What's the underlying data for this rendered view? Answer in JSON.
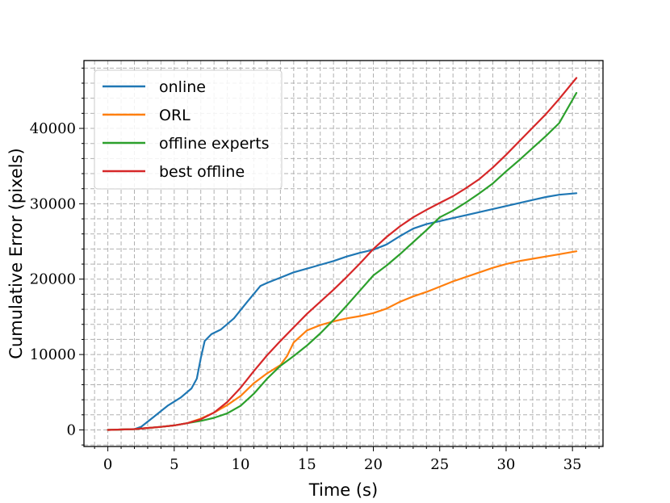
{
  "chart_data": {
    "type": "line",
    "title": "",
    "xlabel": "Time (s)",
    "ylabel": "Cumulative Error (pixels)",
    "xlim": [
      -1.8,
      37.3
    ],
    "ylim": [
      -2200,
      49000
    ],
    "xticks": [
      0,
      5,
      10,
      15,
      20,
      25,
      30,
      35
    ],
    "yticks": [
      0,
      10000,
      20000,
      30000,
      40000
    ],
    "x_minor_step": 1,
    "y_minor_step": 2000,
    "grid": true,
    "legend_position": "upper-left",
    "series": [
      {
        "name": "online",
        "color": "#1f77b4",
        "points": [
          [
            0,
            0
          ],
          [
            2,
            100
          ],
          [
            2.5,
            400
          ],
          [
            3.5,
            1800
          ],
          [
            4.5,
            3200
          ],
          [
            5.5,
            4300
          ],
          [
            6.3,
            5500
          ],
          [
            6.7,
            6800
          ],
          [
            7.0,
            9500
          ],
          [
            7.3,
            11800
          ],
          [
            7.8,
            12700
          ],
          [
            8.5,
            13300
          ],
          [
            9.5,
            14800
          ],
          [
            10.5,
            17000
          ],
          [
            11.5,
            19100
          ],
          [
            12,
            19500
          ],
          [
            13,
            20200
          ],
          [
            14,
            20900
          ],
          [
            15,
            21400
          ],
          [
            16,
            21900
          ],
          [
            17,
            22400
          ],
          [
            18,
            23000
          ],
          [
            19,
            23500
          ],
          [
            20,
            23900
          ],
          [
            21,
            24600
          ],
          [
            22,
            25700
          ],
          [
            23,
            26700
          ],
          [
            24,
            27300
          ],
          [
            25,
            27700
          ],
          [
            26,
            28100
          ],
          [
            27,
            28500
          ],
          [
            28,
            28900
          ],
          [
            29,
            29300
          ],
          [
            30,
            29700
          ],
          [
            31,
            30100
          ],
          [
            32,
            30500
          ],
          [
            33,
            30900
          ],
          [
            34,
            31200
          ],
          [
            35.3,
            31400
          ]
        ]
      },
      {
        "name": "ORL",
        "color": "#ff7f0e",
        "points": [
          [
            0,
            0
          ],
          [
            2,
            100
          ],
          [
            3,
            250
          ],
          [
            4,
            400
          ],
          [
            5,
            600
          ],
          [
            6,
            900
          ],
          [
            7,
            1500
          ],
          [
            8,
            2300
          ],
          [
            9,
            3300
          ],
          [
            10,
            4500
          ],
          [
            11,
            6200
          ],
          [
            12,
            7500
          ],
          [
            13,
            8600
          ],
          [
            13.5,
            9800
          ],
          [
            14,
            11600
          ],
          [
            15,
            13200
          ],
          [
            16,
            13900
          ],
          [
            17,
            14400
          ],
          [
            18,
            14800
          ],
          [
            19,
            15100
          ],
          [
            20,
            15500
          ],
          [
            21,
            16100
          ],
          [
            22,
            17000
          ],
          [
            23,
            17700
          ],
          [
            24,
            18300
          ],
          [
            25,
            19000
          ],
          [
            26,
            19700
          ],
          [
            27,
            20300
          ],
          [
            28,
            20900
          ],
          [
            29,
            21500
          ],
          [
            30,
            22000
          ],
          [
            31,
            22400
          ],
          [
            32,
            22700
          ],
          [
            33,
            23000
          ],
          [
            34,
            23300
          ],
          [
            35.3,
            23700
          ]
        ]
      },
      {
        "name": "offline experts",
        "color": "#2ca02c",
        "points": [
          [
            0,
            0
          ],
          [
            2,
            100
          ],
          [
            3,
            250
          ],
          [
            4,
            400
          ],
          [
            5,
            600
          ],
          [
            6,
            900
          ],
          [
            7,
            1200
          ],
          [
            8,
            1600
          ],
          [
            9,
            2200
          ],
          [
            10,
            3200
          ],
          [
            11,
            4800
          ],
          [
            12,
            6800
          ],
          [
            13,
            8500
          ],
          [
            14,
            9800
          ],
          [
            15,
            11200
          ],
          [
            16,
            12800
          ],
          [
            17,
            14600
          ],
          [
            18,
            16500
          ],
          [
            19,
            18500
          ],
          [
            20,
            20500
          ],
          [
            21,
            21800
          ],
          [
            22,
            23300
          ],
          [
            23,
            24900
          ],
          [
            24,
            26500
          ],
          [
            25,
            28200
          ],
          [
            26,
            29100
          ],
          [
            27,
            30200
          ],
          [
            28,
            31400
          ],
          [
            29,
            32700
          ],
          [
            30,
            34300
          ],
          [
            31,
            35800
          ],
          [
            32,
            37400
          ],
          [
            33,
            39000
          ],
          [
            34,
            40700
          ],
          [
            35.3,
            44700
          ]
        ]
      },
      {
        "name": "best offline",
        "color": "#d62728",
        "points": [
          [
            0,
            0
          ],
          [
            2,
            100
          ],
          [
            3,
            250
          ],
          [
            4,
            400
          ],
          [
            5,
            600
          ],
          [
            6,
            900
          ],
          [
            7,
            1400
          ],
          [
            8,
            2300
          ],
          [
            9,
            3700
          ],
          [
            10,
            5600
          ],
          [
            11,
            7800
          ],
          [
            12,
            9900
          ],
          [
            13,
            11800
          ],
          [
            14,
            13600
          ],
          [
            15,
            15400
          ],
          [
            16,
            17000
          ],
          [
            17,
            18600
          ],
          [
            18,
            20300
          ],
          [
            19,
            22100
          ],
          [
            20,
            24000
          ],
          [
            21,
            25600
          ],
          [
            22,
            27000
          ],
          [
            23,
            28200
          ],
          [
            24,
            29200
          ],
          [
            25,
            30100
          ],
          [
            26,
            31000
          ],
          [
            27,
            32100
          ],
          [
            28,
            33300
          ],
          [
            29,
            34800
          ],
          [
            30,
            36500
          ],
          [
            31,
            38300
          ],
          [
            32,
            40100
          ],
          [
            33,
            41900
          ],
          [
            34,
            43900
          ],
          [
            35.3,
            46700
          ]
        ]
      }
    ]
  }
}
